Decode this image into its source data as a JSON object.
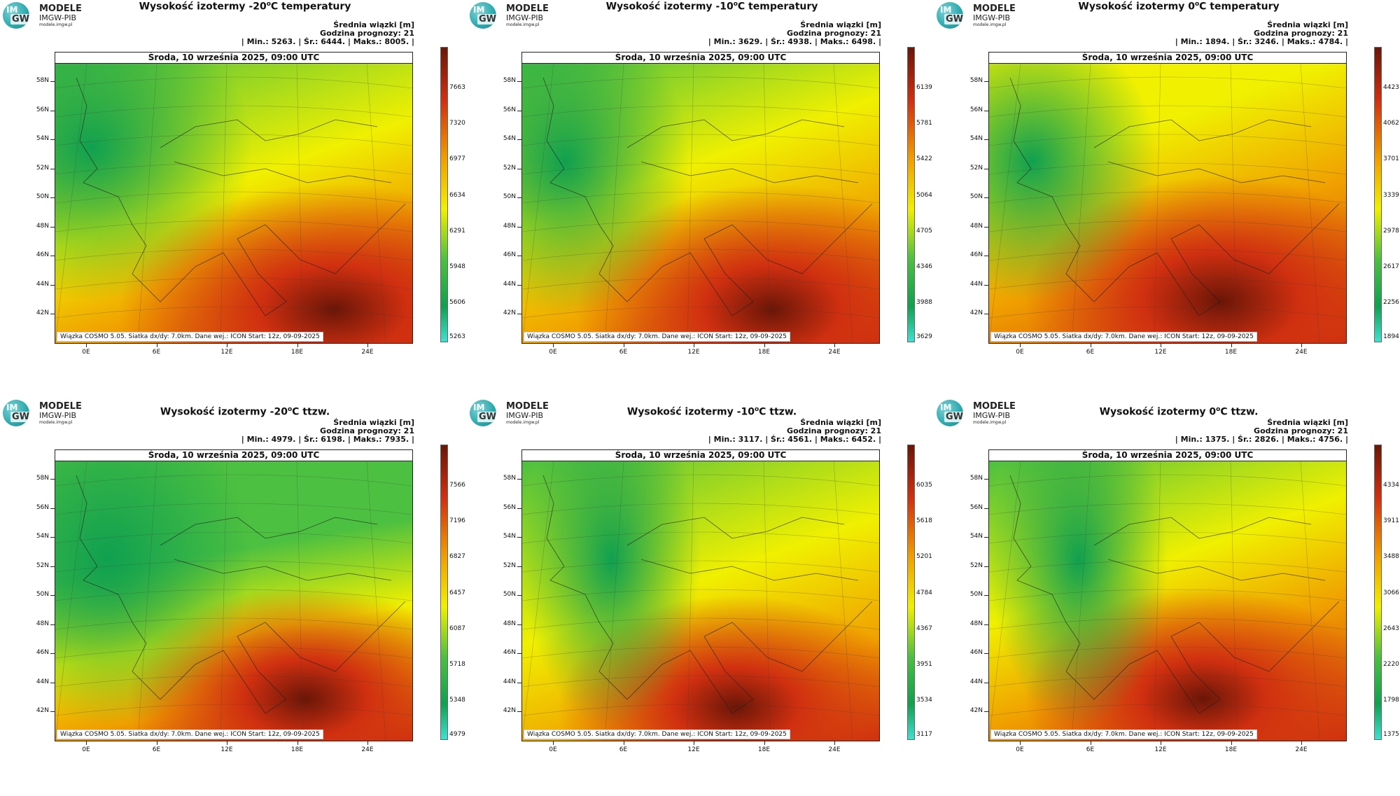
{
  "logo": {
    "circle_top": "IM",
    "circle_bottom": "GW",
    "line1": "MODELE",
    "line2": "IMGW-PIB",
    "line3": "modele.imgw.pl"
  },
  "map_header": "Środa, 10 września 2025, 09:00 UTC",
  "footer": "Wiązka COSMO 5.05. Siatka dx/dy: 7.0km. Dane wej.: ICON Start: 12z, 09-09-2025",
  "info_lines": {
    "mean": "Średnia wiązki [m]",
    "hour": "Godzina prognozy: 21"
  },
  "lat_labels": [
    "58N",
    "56N",
    "54N",
    "52N",
    "50N",
    "48N",
    "46N",
    "44N",
    "42N"
  ],
  "lon_labels": [
    "0E",
    "6E",
    "12E",
    "18E",
    "24E"
  ],
  "colors": {
    "low": "#40e0d0",
    "green": "#10a050",
    "mid_green": "#4cc040",
    "yellow": "#f0f000",
    "orange": "#f0a000",
    "red": "#d03010",
    "dark": "#6a1608"
  },
  "panels": [
    {
      "title_prefix": "Wysokość izotermy -20",
      "title_suffix": "C temperatury",
      "deg": "o",
      "stats": "| Min.:     5263. | Śr.:     6444. | Maks.:    8005. |",
      "scale": [
        "7663",
        "7320",
        "6977",
        "6634",
        "6291",
        "5948",
        "5606",
        "5263"
      ]
    },
    {
      "title_prefix": "Wysokość izotermy -10",
      "title_suffix": "C temperatury",
      "deg": "o",
      "stats": "| Min.:     3629. | Śr.:     4938. | Maks.:    6498. |",
      "scale": [
        "6139",
        "5781",
        "5422",
        "5064",
        "4705",
        "4346",
        "3988",
        "3629"
      ]
    },
    {
      "title_prefix": "Wysokość izotermy 0",
      "title_suffix": "C temperatury",
      "deg": "o",
      "stats": "| Min.:     1894. | Śr.:     3246. | Maks.:    4784. |",
      "scale": [
        "4423",
        "4062",
        "3701",
        "3339",
        "2978",
        "2617",
        "2256",
        "1894"
      ]
    },
    {
      "title_prefix": "Wysokość izotermy -20",
      "title_suffix": "C ttzw.",
      "deg": "o",
      "stats": "| Min.:     4979. | Śr.:     6198. | Maks.:    7935. |",
      "scale": [
        "7566",
        "7196",
        "6827",
        "6457",
        "6087",
        "5718",
        "5348",
        "4979"
      ]
    },
    {
      "title_prefix": "Wysokość izotermy -10",
      "title_suffix": "C ttzw.",
      "deg": "o",
      "stats": "| Min.:     3117. | Śr.:     4561. | Maks.:    6452. |",
      "scale": [
        "6035",
        "5618",
        "5201",
        "4784",
        "4367",
        "3951",
        "3534",
        "3117"
      ]
    },
    {
      "title_prefix": "Wysokość izotermy 0",
      "title_suffix": "C ttzw.",
      "deg": "o",
      "stats": "| Min.:     1375. | Śr.:     2826. | Maks.:    4756. |",
      "scale": [
        "4334",
        "3911",
        "3488",
        "3066",
        "2643",
        "2220",
        "1798",
        "1375"
      ]
    }
  ]
}
